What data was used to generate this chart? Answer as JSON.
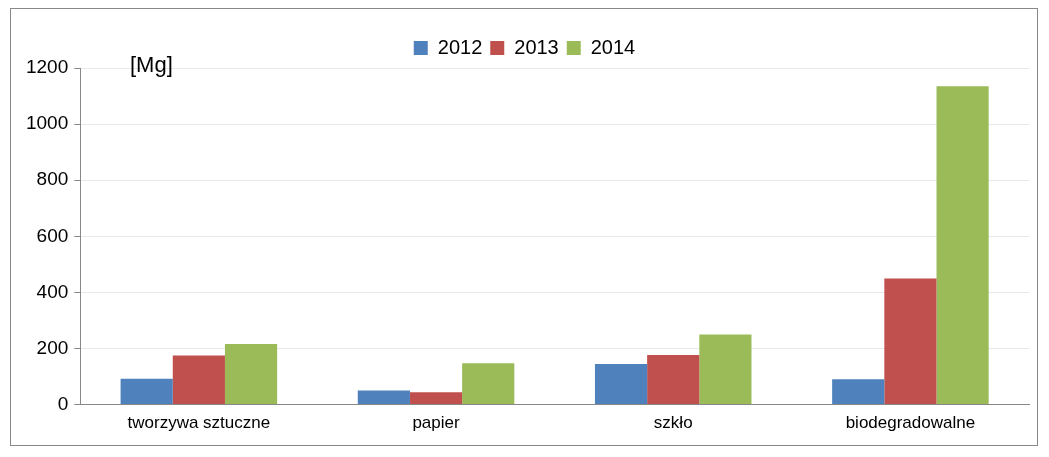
{
  "chart_data": {
    "type": "bar",
    "categories": [
      "tworzywa sztuczne",
      "papier",
      "szkło",
      "biodegradowalne"
    ],
    "series": [
      {
        "name": "2012",
        "color": "#4f81bd",
        "values": [
          92,
          50,
          145,
          90
        ]
      },
      {
        "name": "2013",
        "color": "#c0504d",
        "values": [
          175,
          44,
          177,
          450
        ]
      },
      {
        "name": "2014",
        "color": "#9bbb59",
        "values": [
          216,
          147,
          250,
          1135
        ]
      }
    ],
    "ylim": [
      0,
      1200
    ],
    "yticks": [
      0,
      200,
      400,
      600,
      800,
      1000,
      1200
    ],
    "grid": "y",
    "legend": "top",
    "annotations": [
      "[Mg]"
    ]
  }
}
